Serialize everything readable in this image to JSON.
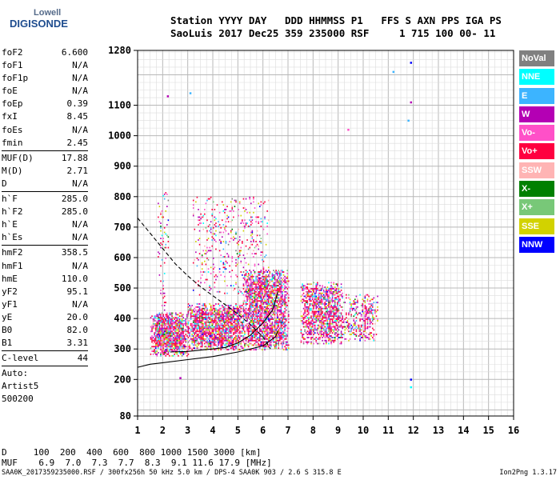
{
  "logo": {
    "top": "Lowell",
    "bottom": "DIGISONDE"
  },
  "header": {
    "line1": "Station YYYY DAY   DDD HHMMSS P1   FFS S AXN PPS IGA PS",
    "line2": "SaoLuis 2017 Dec25 359 235000 RSF     1 715 100 00- 11"
  },
  "params": {
    "group1": [
      {
        "label": "foF2",
        "value": "6.600"
      },
      {
        "label": "foF1",
        "value": "N/A"
      },
      {
        "label": "foF1p",
        "value": "N/A"
      },
      {
        "label": "foE",
        "value": "N/A"
      },
      {
        "label": "foEp",
        "value": "0.39"
      },
      {
        "label": "fxI",
        "value": "8.45"
      },
      {
        "label": "foEs",
        "value": "N/A"
      },
      {
        "label": "fmin",
        "value": "2.45"
      }
    ],
    "group2": [
      {
        "label": "MUF(D)",
        "value": "17.88"
      },
      {
        "label": "M(D)",
        "value": "2.71"
      },
      {
        "label": "D",
        "value": "N/A"
      }
    ],
    "group3": [
      {
        "label": "h`F",
        "value": "285.0"
      },
      {
        "label": "h`F2",
        "value": "285.0"
      },
      {
        "label": "h`E",
        "value": "N/A"
      },
      {
        "label": "h`Es",
        "value": "N/A"
      }
    ],
    "group4": [
      {
        "label": "hmF2",
        "value": "358.5"
      },
      {
        "label": "hmF1",
        "value": "N/A"
      },
      {
        "label": "hmE",
        "value": "110.0"
      },
      {
        "label": "yF2",
        "value": "95.1"
      },
      {
        "label": "yF1",
        "value": "N/A"
      },
      {
        "label": "yE",
        "value": "20.0"
      },
      {
        "label": "B0",
        "value": "82.0"
      },
      {
        "label": "B1",
        "value": "3.31"
      }
    ],
    "clevel": {
      "label": "C-level",
      "value": "44"
    },
    "auto": [
      "Auto:",
      "Artist5",
      "500200"
    ]
  },
  "legend": [
    {
      "label": "NoVal",
      "color": "#808080"
    },
    {
      "label": "NNE",
      "color": "#00ffff"
    },
    {
      "label": "E",
      "color": "#3cb4ff"
    },
    {
      "label": "W",
      "color": "#b400b4"
    },
    {
      "label": "Vo-",
      "color": "#ff50c8"
    },
    {
      "label": "Vo+",
      "color": "#ff0040"
    },
    {
      "label": "SSW",
      "color": "#ffb4b4"
    },
    {
      "label": "X-",
      "color": "#008000"
    },
    {
      "label": "X+",
      "color": "#78c878"
    },
    {
      "label": "SSE",
      "color": "#d2d200"
    },
    {
      "label": "NNW",
      "color": "#0000ff"
    }
  ],
  "bottom": {
    "d_line": "D     100  200  400  600  800 1000 1500 3000 [km]",
    "muf_line": "MUF    6.9  7.0  7.3  7.7  8.3  9.1 11.6 17.9 [MHz]",
    "footer": "SAA0K_2017359235000.RSF / 300fx256h 50 kHz 5.0 km / DPS-4 SAA0K 903 / 2.6 S 315.8 E",
    "version": "Ion2Png 1.3.17"
  },
  "chart_data": {
    "type": "scatter",
    "title": "",
    "xlabel": "",
    "ylabel": "",
    "xlim": [
      1,
      16
    ],
    "ylim": [
      80,
      1280
    ],
    "x_ticks": [
      1,
      2,
      3,
      4,
      5,
      6,
      7,
      8,
      9,
      10,
      11,
      12,
      13,
      14,
      15,
      16
    ],
    "y_ticks": [
      80,
      200,
      300,
      400,
      500,
      600,
      700,
      800,
      900,
      1000,
      1100,
      1280
    ],
    "grid": true,
    "legend_placement": "right",
    "echo_clusters": [
      {
        "x": [
          1.5,
          3.0
        ],
        "y": [
          280,
          420
        ],
        "density": 0.9
      },
      {
        "x": [
          3.0,
          5.2
        ],
        "y": [
          300,
          450
        ],
        "density": 0.85
      },
      {
        "x": [
          5.2,
          7.0
        ],
        "y": [
          300,
          560
        ],
        "density": 0.75
      },
      {
        "x": [
          7.5,
          9.2
        ],
        "y": [
          320,
          520
        ],
        "density": 0.7
      },
      {
        "x": [
          9.2,
          10.6
        ],
        "y": [
          330,
          480
        ],
        "density": 0.4
      },
      {
        "x": [
          3.2,
          6.2
        ],
        "y": [
          480,
          800
        ],
        "density": 0.12
      },
      {
        "x": [
          1.8,
          2.2
        ],
        "y": [
          300,
          820
        ],
        "density": 0.2
      }
    ],
    "curves": [
      {
        "name": "",
        "style": "dashed",
        "points": [
          [
            1.0,
            730
          ],
          [
            1.5,
            680
          ],
          [
            2.0,
            630
          ],
          [
            2.5,
            580
          ],
          [
            3.0,
            540
          ],
          [
            3.5,
            505
          ],
          [
            4.0,
            475
          ],
          [
            4.5,
            445
          ],
          [
            5.0,
            415
          ],
          [
            5.5,
            380
          ],
          [
            6.0,
            340
          ],
          [
            6.3,
            300
          ]
        ]
      },
      {
        "name": "",
        "style": "solid",
        "points": [
          [
            1.0,
            240
          ],
          [
            1.5,
            250
          ],
          [
            2.0,
            255
          ],
          [
            3.0,
            265
          ],
          [
            4.0,
            275
          ],
          [
            5.0,
            290
          ],
          [
            6.0,
            310
          ],
          [
            6.5,
            340
          ],
          [
            6.6,
            360
          ]
        ]
      },
      {
        "name": "",
        "style": "solid",
        "points": [
          [
            2.3,
            290
          ],
          [
            3.0,
            292
          ],
          [
            3.5,
            296
          ],
          [
            4.0,
            300
          ],
          [
            4.5,
            305
          ],
          [
            5.0,
            320
          ],
          [
            5.5,
            345
          ],
          [
            6.0,
            385
          ],
          [
            6.4,
            430
          ],
          [
            6.6,
            490
          ]
        ]
      }
    ],
    "scattered_points": [
      {
        "x": 2.2,
        "y": 1130,
        "color": "#b400b4"
      },
      {
        "x": 3.1,
        "y": 1140,
        "color": "#3cb4ff"
      },
      {
        "x": 9.4,
        "y": 1020,
        "color": "#ff50c8"
      },
      {
        "x": 11.2,
        "y": 1210,
        "color": "#3cb4ff"
      },
      {
        "x": 11.9,
        "y": 1240,
        "color": "#0000ff"
      },
      {
        "x": 11.9,
        "y": 1110,
        "color": "#b400b4"
      },
      {
        "x": 11.8,
        "y": 1050,
        "color": "#3cb4ff"
      },
      {
        "x": 11.9,
        "y": 200,
        "color": "#0000ff"
      },
      {
        "x": 11.9,
        "y": 175,
        "color": "#00ffff"
      },
      {
        "x": 2.7,
        "y": 205,
        "color": "#b400b4"
      },
      {
        "x": 4.2,
        "y": 330,
        "color": "#808080"
      }
    ]
  }
}
